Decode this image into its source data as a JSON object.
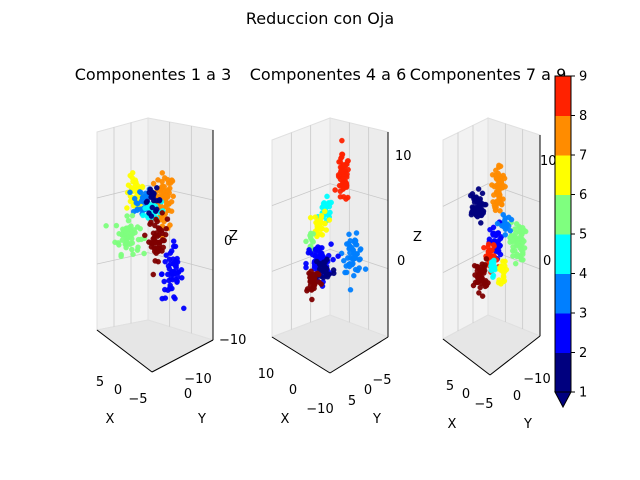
{
  "figure": {
    "title": "Reduccion con Oja"
  },
  "colors": {
    "classes": [
      "#00007f",
      "#0000ff",
      "#007fff",
      "#00ffff",
      "#7fff7f",
      "#ffff00",
      "#ff8c00",
      "#ff2200",
      "#7f0000"
    ],
    "pane": "#f2f2f2",
    "grid": "#c8c8c8"
  },
  "chart_data": [
    {
      "type": "scatter3d",
      "title": "Componentes 1 a 3",
      "xlabel": "X",
      "ylabel": "Y",
      "zlabel": "Z",
      "xticks": [
        "5",
        "0",
        "−5"
      ],
      "yticks": [
        "0",
        "−10"
      ],
      "zticks": [
        "0",
        "−10"
      ],
      "clusters": [
        {
          "class": 7,
          "cx": 0.58,
          "cz": 0.67,
          "sx": 0.1,
          "sz": 0.14,
          "n": 70
        },
        {
          "class": 6,
          "cx": 0.3,
          "cz": 0.7,
          "sx": 0.09,
          "sz": 0.09,
          "n": 45
        },
        {
          "class": 3,
          "cx": 0.36,
          "cz": 0.67,
          "sx": 0.1,
          "sz": 0.08,
          "n": 35
        },
        {
          "class": 4,
          "cx": 0.48,
          "cz": 0.62,
          "sx": 0.1,
          "sz": 0.06,
          "n": 25
        },
        {
          "class": 5,
          "cx": 0.22,
          "cz": 0.49,
          "sx": 0.12,
          "sz": 0.09,
          "n": 60
        },
        {
          "class": 9,
          "cx": 0.52,
          "cz": 0.48,
          "sx": 0.09,
          "sz": 0.11,
          "n": 50
        },
        {
          "class": 1,
          "cx": 0.47,
          "cz": 0.67,
          "sx": 0.08,
          "sz": 0.06,
          "n": 20
        },
        {
          "class": 2,
          "cx": 0.66,
          "cz": 0.3,
          "sx": 0.1,
          "sz": 0.14,
          "n": 55
        }
      ]
    },
    {
      "type": "scatter3d",
      "title": "Componentes 4 a 6",
      "xlabel": "X",
      "ylabel": "Y",
      "zlabel": "Z",
      "xticks": [
        "10",
        "0",
        "−10"
      ],
      "yticks": [
        "−5",
        "0",
        "5"
      ],
      "zticks": [
        "10",
        "0"
      ],
      "clusters": [
        {
          "class": 8,
          "cx": 0.62,
          "cz": 0.78,
          "sx": 0.06,
          "sz": 0.12,
          "n": 60
        },
        {
          "class": 4,
          "cx": 0.45,
          "cz": 0.62,
          "sx": 0.07,
          "sz": 0.06,
          "n": 25
        },
        {
          "class": 6,
          "cx": 0.4,
          "cz": 0.55,
          "sx": 0.07,
          "sz": 0.07,
          "n": 30
        },
        {
          "class": 5,
          "cx": 0.3,
          "cz": 0.47,
          "sx": 0.04,
          "sz": 0.05,
          "n": 12
        },
        {
          "class": 3,
          "cx": 0.72,
          "cz": 0.4,
          "sx": 0.1,
          "sz": 0.09,
          "n": 50
        },
        {
          "class": 2,
          "cx": 0.38,
          "cz": 0.35,
          "sx": 0.12,
          "sz": 0.1,
          "n": 70
        },
        {
          "class": 1,
          "cx": 0.44,
          "cz": 0.32,
          "sx": 0.1,
          "sz": 0.08,
          "n": 30
        },
        {
          "class": 9,
          "cx": 0.32,
          "cz": 0.27,
          "sx": 0.08,
          "sz": 0.07,
          "n": 30
        }
      ]
    },
    {
      "type": "scatter3d",
      "title": "Componentes 7 a 9",
      "xlabel": "X",
      "ylabel": "Y",
      "zlabel": "Z",
      "xticks": [
        "5",
        "0",
        "−5"
      ],
      "yticks": [
        "0",
        "−10"
      ],
      "zticks": [
        "10",
        "0"
      ],
      "clusters": [
        {
          "class": 7,
          "cx": 0.58,
          "cz": 0.74,
          "sx": 0.06,
          "sz": 0.12,
          "n": 60
        },
        {
          "class": 1,
          "cx": 0.3,
          "cz": 0.64,
          "sx": 0.1,
          "sz": 0.08,
          "n": 50
        },
        {
          "class": 5,
          "cx": 0.8,
          "cz": 0.47,
          "sx": 0.09,
          "sz": 0.1,
          "n": 55
        },
        {
          "class": 2,
          "cx": 0.55,
          "cz": 0.46,
          "sx": 0.08,
          "sz": 0.1,
          "n": 40
        },
        {
          "class": 8,
          "cx": 0.48,
          "cz": 0.38,
          "sx": 0.08,
          "sz": 0.08,
          "n": 35
        },
        {
          "class": 9,
          "cx": 0.36,
          "cz": 0.3,
          "sx": 0.08,
          "sz": 0.08,
          "n": 40
        },
        {
          "class": 6,
          "cx": 0.62,
          "cz": 0.32,
          "sx": 0.06,
          "sz": 0.06,
          "n": 20
        },
        {
          "class": 3,
          "cx": 0.65,
          "cz": 0.55,
          "sx": 0.06,
          "sz": 0.05,
          "n": 20
        },
        {
          "class": 4,
          "cx": 0.5,
          "cz": 0.35,
          "sx": 0.06,
          "sz": 0.05,
          "n": 15
        }
      ]
    }
  ],
  "colorbar": {
    "ticks": [
      "1",
      "2",
      "3",
      "4",
      "5",
      "6",
      "7",
      "8",
      "9"
    ],
    "min": 1,
    "max": 9
  }
}
